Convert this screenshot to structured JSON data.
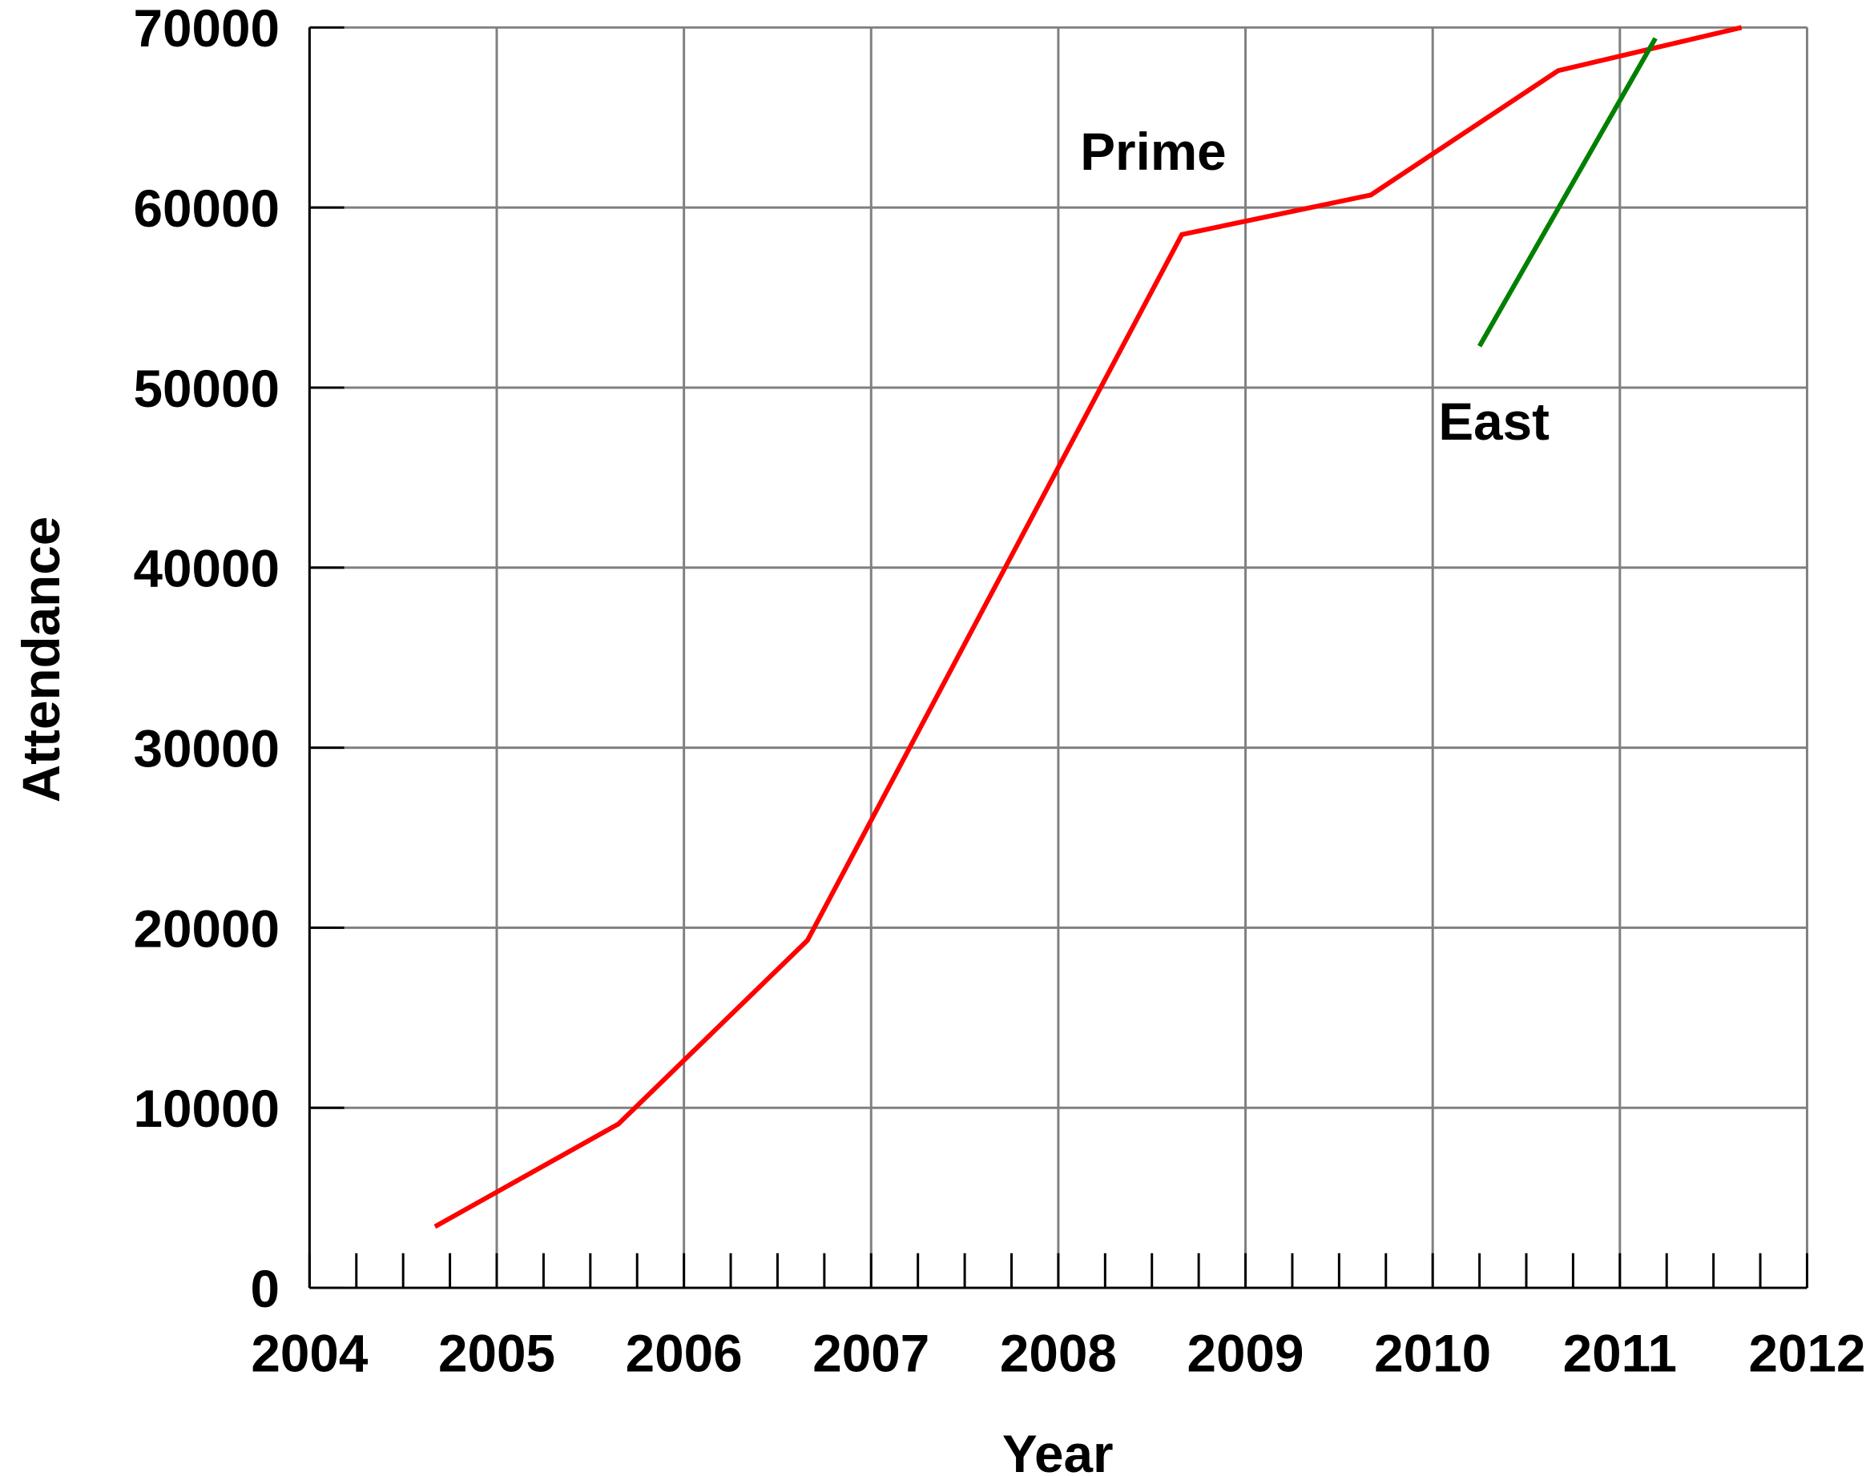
{
  "chart_data": {
    "type": "line",
    "x_label": "Year",
    "y_label": "Attendance",
    "annotations": [
      "Prime",
      "East"
    ],
    "series": [
      {
        "name": "Prime",
        "color": "#ff0000",
        "x": [
          2004.67,
          2005.65,
          2006.66,
          2008.66,
          2009.67,
          2010.67,
          2011.65
        ],
        "values": [
          3400,
          9100,
          19300,
          58500,
          60700,
          67600,
          70000
        ]
      },
      {
        "name": "East",
        "color": "#008000",
        "x": [
          2010.25,
          2011.19
        ],
        "values": [
          52300,
          69400
        ]
      }
    ],
    "xlim": [
      2004,
      2012
    ],
    "xticks": [
      2004,
      2005,
      2006,
      2007,
      2008,
      2009,
      2010,
      2011,
      2012
    ],
    "x_minor_per_major": 4,
    "ylim": [
      0,
      70000
    ],
    "yticks": [
      0,
      10000,
      20000,
      30000,
      40000,
      50000,
      60000,
      70000
    ],
    "grid": true
  }
}
